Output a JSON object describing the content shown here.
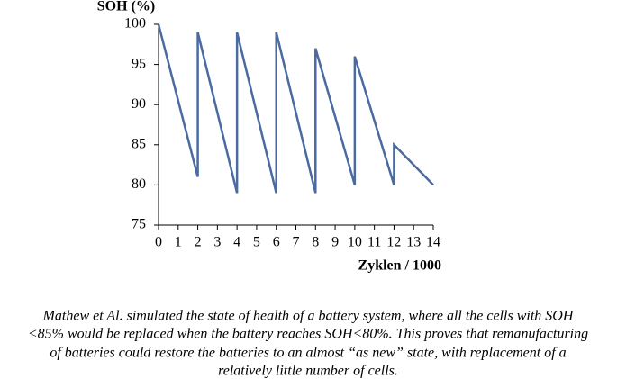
{
  "chart_data": {
    "type": "line",
    "ylabel": "SOH (%)",
    "xlabel": "Zyklen / 1000",
    "x": [
      0,
      2,
      2,
      4,
      4,
      6,
      6,
      8,
      8,
      10,
      10,
      12,
      12,
      14
    ],
    "series": [
      {
        "color": "#4a6aa0",
        "values": [
          100,
          81,
          99,
          79,
          99,
          79,
          99,
          79,
          97,
          80,
          96,
          80,
          85,
          80
        ]
      }
    ],
    "xlim": [
      0,
      14
    ],
    "xticks": [
      0,
      1,
      2,
      3,
      4,
      5,
      6,
      7,
      8,
      9,
      10,
      11,
      12,
      13,
      14
    ],
    "ylim": [
      75,
      100
    ],
    "yticks": [
      75,
      80,
      85,
      90,
      95,
      100
    ],
    "grid": false
  },
  "caption": [
    "Mathew et Al. simulated the state of health of a battery system, where all the cells with SOH",
    "<85% would be replaced when the battery reaches SOH<80%. This proves that remanufacturing",
    "of batteries could restore the batteries to an almost “as new” state, with replacement of a",
    "relatively little number of cells."
  ]
}
